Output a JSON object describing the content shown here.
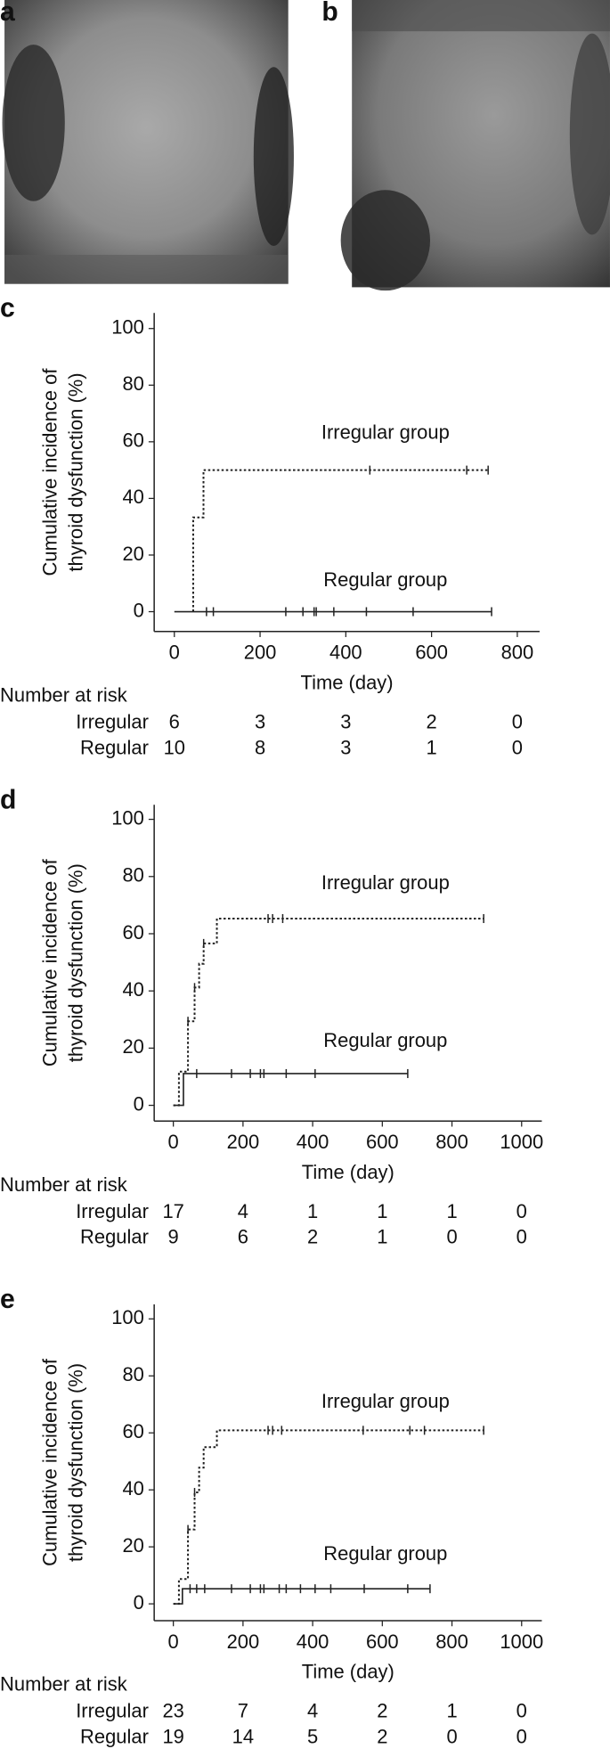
{
  "image_panels": [
    "a",
    "b"
  ],
  "chart_data": [
    {
      "type": "line",
      "panel": "c",
      "ylabel": [
        "Cumulative incidence of",
        "thyroid dysfunction (%)"
      ],
      "xlabel": "Time (day)",
      "xlim": [
        -47,
        852
      ],
      "ylim": [
        -7,
        105.5
      ],
      "xticks": [
        0,
        200,
        400,
        600,
        800
      ],
      "yticks": [
        0,
        20,
        40,
        60,
        80,
        100
      ],
      "annotations": [
        "Irregular group",
        "Regular group"
      ],
      "series": [
        {
          "line_style": "dotted",
          "color": "#222222",
          "x": [
            44,
            44,
            68,
            68,
            732
          ],
          "values": [
            0,
            33.3,
            33.3,
            50,
            50
          ],
          "censored_x": [
            456,
            682,
            732
          ],
          "censored_values": [
            50,
            50,
            50
          ]
        },
        {
          "line_style": "solid",
          "color": "#222222",
          "x": [
            0,
            740
          ],
          "values": [
            0,
            0
          ],
          "censored_x": [
            75,
            91,
            260,
            300,
            326,
            331,
            372,
            448,
            557,
            740
          ],
          "censored_values": [
            0,
            0,
            0,
            0,
            0,
            0,
            0,
            0,
            0,
            0
          ]
        }
      ],
      "risk_table": {
        "title": "Number at risk",
        "rows": [
          {
            "name": "Irregular",
            "values": [
              6,
              3,
              3,
              2,
              0
            ]
          },
          {
            "name": "Regular",
            "values": [
              10,
              8,
              3,
              1,
              0
            ]
          }
        ]
      }
    },
    {
      "type": "line",
      "panel": "d",
      "ylabel": [
        "Cumulative incidence of",
        "thyroid dysfunction (%)"
      ],
      "xlabel": "Time (day)",
      "xlim": [
        -55,
        1058
      ],
      "ylim": [
        -5.5,
        105.1
      ],
      "xticks": [
        0,
        200,
        400,
        600,
        800,
        1000
      ],
      "yticks": [
        0,
        20,
        40,
        60,
        80,
        100
      ],
      "annotations": [
        "Irregular group",
        "Regular group"
      ],
      "series": [
        {
          "line_style": "dotted",
          "color": "#222222",
          "x": [
            0,
            16,
            16,
            42,
            42,
            61,
            61,
            74,
            74,
            87,
            87,
            125,
            125,
            891
          ],
          "values": [
            0,
            0,
            11.8,
            11.8,
            29.4,
            29.4,
            41.2,
            41.2,
            49.5,
            49.5,
            56.6,
            56.6,
            65.3,
            65.3
          ],
          "censored_x": [
            42,
            61,
            87,
            272,
            285,
            314,
            891
          ],
          "censored_values": [
            29.4,
            41.2,
            56.6,
            65.3,
            65.3,
            65.3,
            65.3
          ]
        },
        {
          "line_style": "solid",
          "color": "#222222",
          "x": [
            0,
            29,
            29,
            673
          ],
          "values": [
            0,
            0,
            11.1,
            11.1
          ],
          "censored_x": [
            67,
            167,
            221,
            250,
            260,
            324,
            407,
            673
          ],
          "censored_values": [
            11.1,
            11.1,
            11.1,
            11.1,
            11.1,
            11.1,
            11.1,
            11.1
          ]
        }
      ],
      "risk_table": {
        "title": "Number at risk",
        "rows": [
          {
            "name": "Irregular",
            "values": [
              17,
              4,
              1,
              1,
              1,
              0
            ]
          },
          {
            "name": "Regular",
            "values": [
              9,
              6,
              2,
              1,
              0,
              0
            ]
          }
        ]
      }
    },
    {
      "type": "line",
      "panel": "e",
      "ylabel": [
        "Cumulative incidence of",
        "thyroid dysfunction (%)"
      ],
      "xlabel": "Time (day)",
      "xlim": [
        -55,
        1058
      ],
      "ylim": [
        -5.9,
        105.1
      ],
      "xticks": [
        0,
        200,
        400,
        600,
        800,
        1000
      ],
      "yticks": [
        0,
        20,
        40,
        60,
        80,
        100
      ],
      "annotations": [
        "Irregular group",
        "Regular group"
      ],
      "series": [
        {
          "line_style": "dotted",
          "color": "#222222",
          "x": [
            0,
            16,
            16,
            42,
            42,
            61,
            61,
            74,
            74,
            87,
            87,
            125,
            125,
            891
          ],
          "values": [
            0,
            0,
            8.7,
            8.7,
            26.1,
            26.1,
            39.1,
            39.1,
            47.8,
            47.8,
            55,
            55,
            60.9,
            60.9
          ],
          "censored_x": [
            42,
            61,
            272,
            285,
            311,
            545,
            679,
            721,
            891
          ],
          "censored_values": [
            26.1,
            39.1,
            60.9,
            60.9,
            60.9,
            60.9,
            60.9,
            60.9,
            60.9
          ]
        },
        {
          "line_style": "solid",
          "color": "#222222",
          "x": [
            0,
            26,
            26,
            737
          ],
          "values": [
            0,
            0,
            5.3,
            5.3
          ],
          "censored_x": [
            48,
            67,
            90,
            167,
            221,
            250,
            260,
            304,
            324,
            365,
            407,
            452,
            548,
            673,
            737
          ],
          "censored_values": [
            5.3,
            5.3,
            5.3,
            5.3,
            5.3,
            5.3,
            5.3,
            5.3,
            5.3,
            5.3,
            5.3,
            5.3,
            5.3,
            5.3,
            5.3
          ]
        }
      ],
      "risk_table": {
        "title": "Number at risk",
        "rows": [
          {
            "name": "Irregular",
            "values": [
              23,
              7,
              4,
              2,
              1,
              0
            ]
          },
          {
            "name": "Regular",
            "values": [
              19,
              14,
              5,
              2,
              0,
              0
            ]
          }
        ]
      }
    }
  ]
}
